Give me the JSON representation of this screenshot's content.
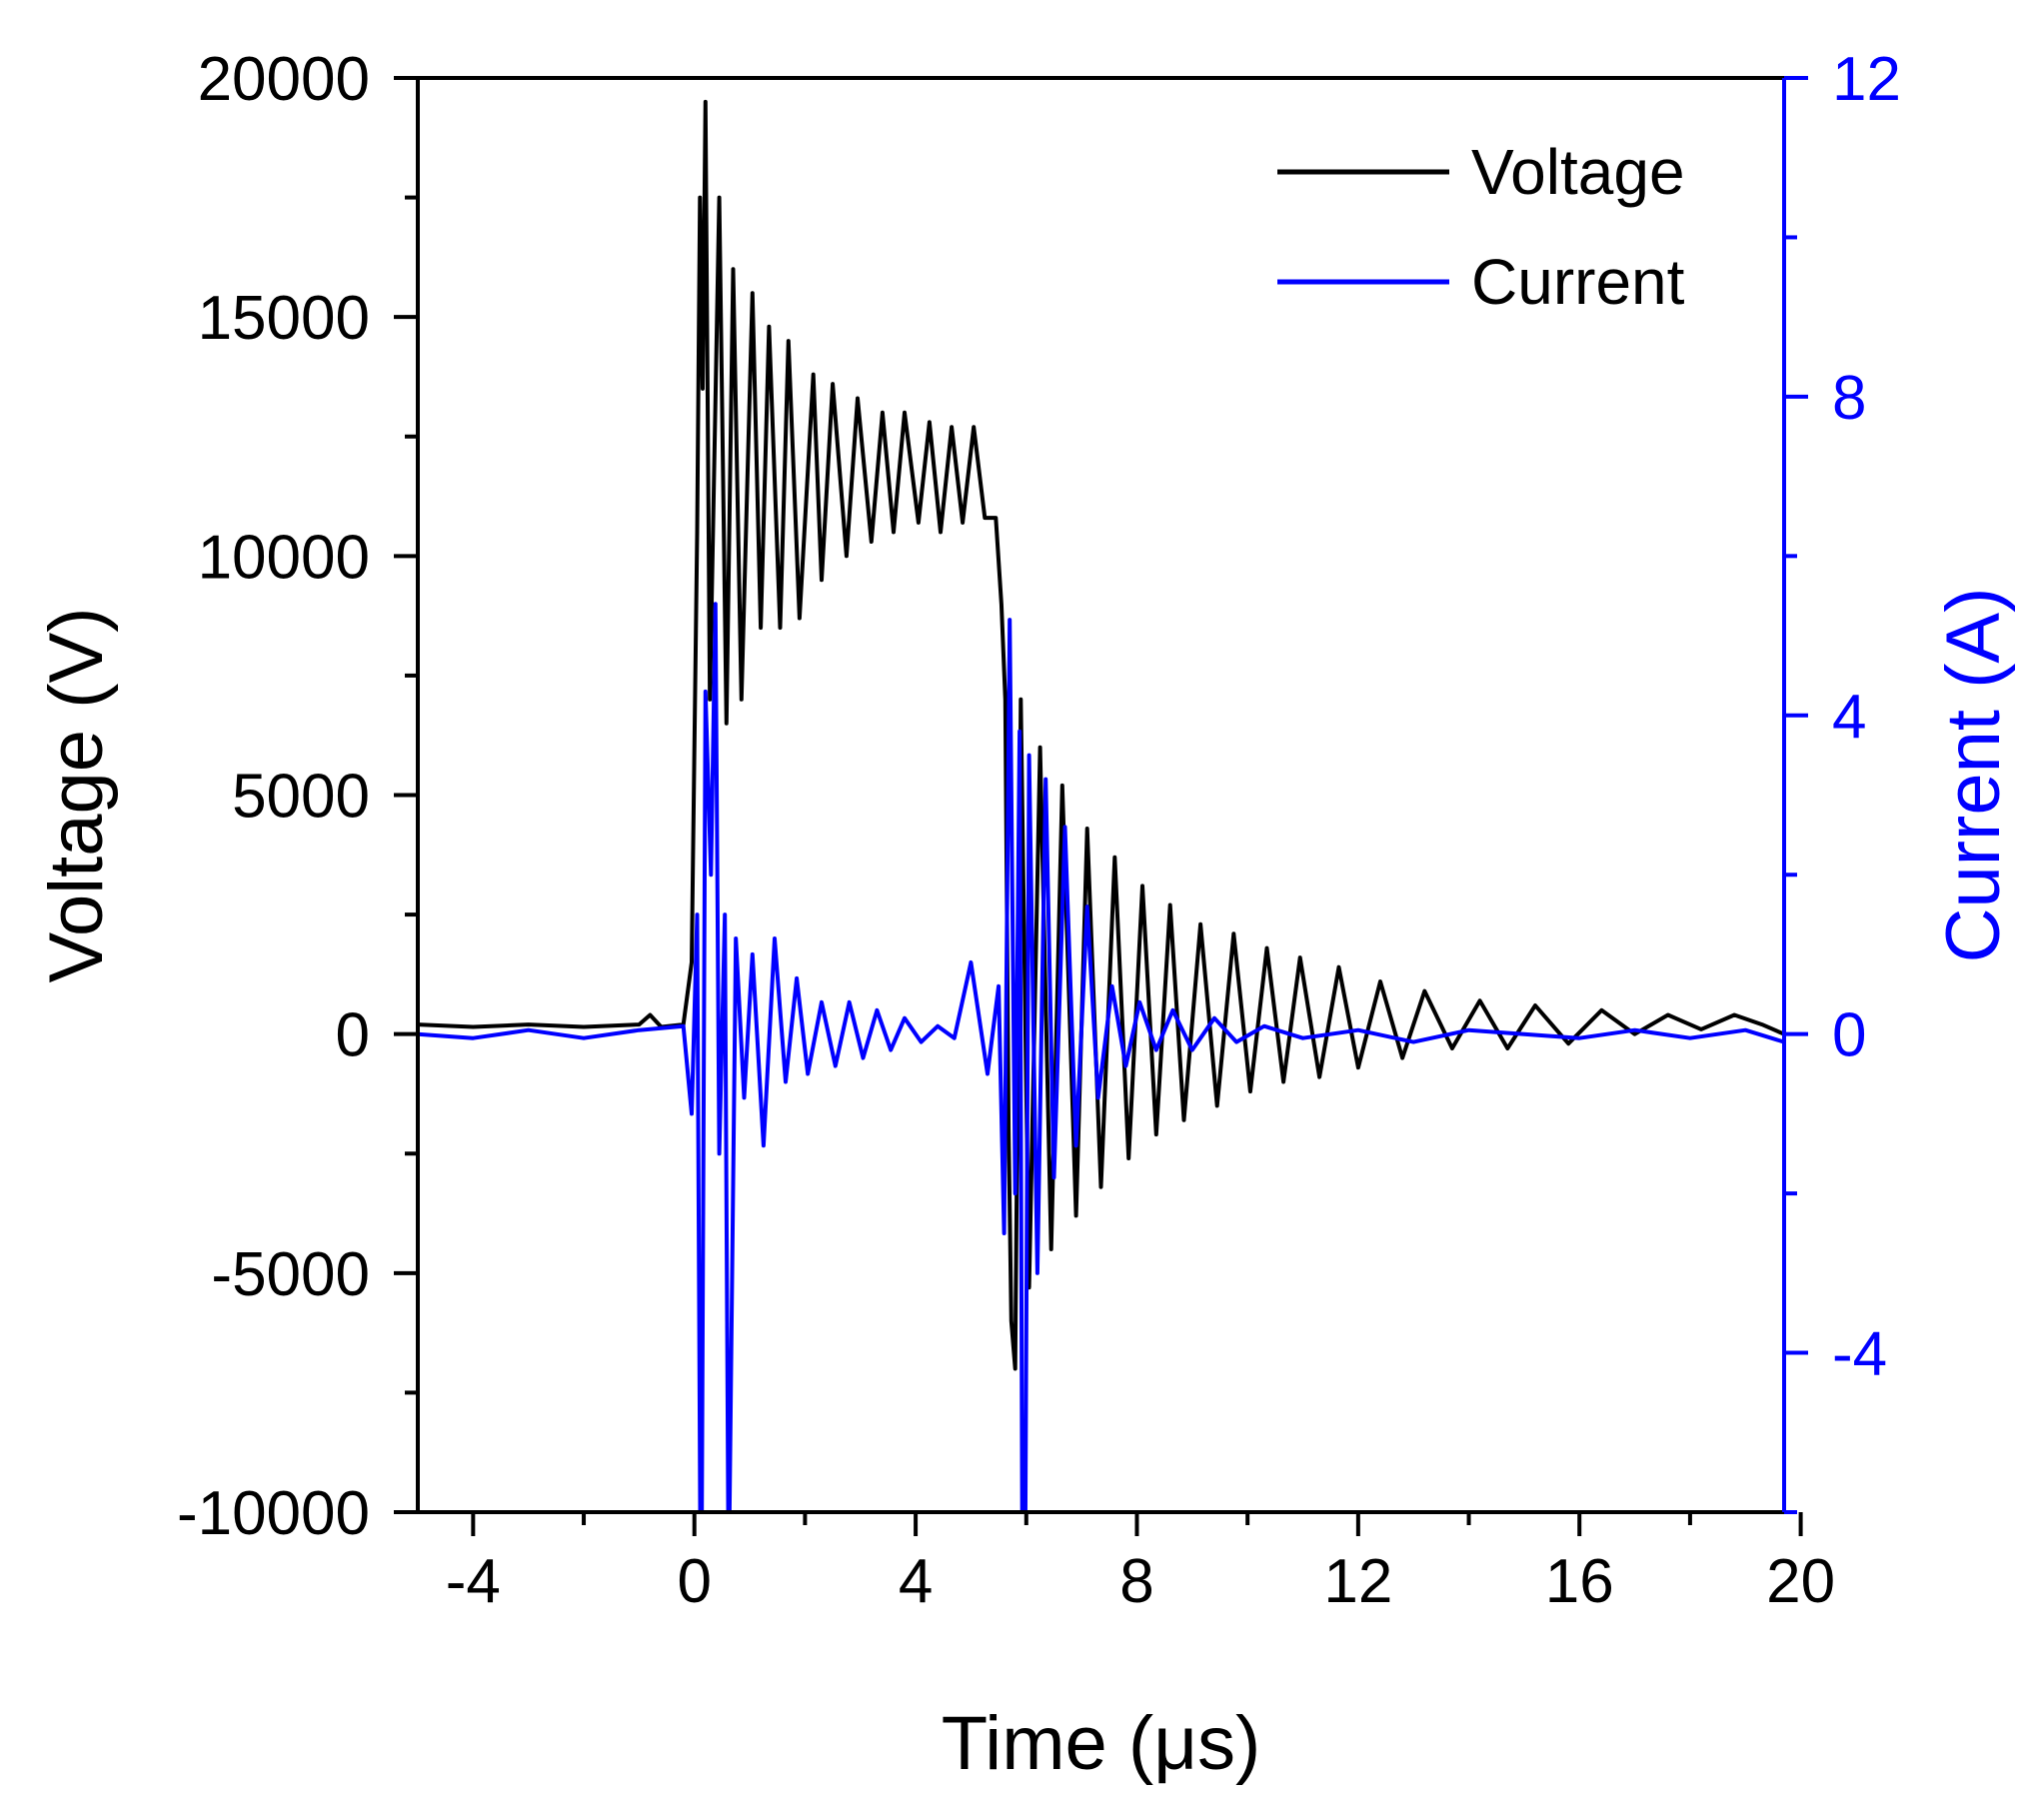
{
  "chart_data": {
    "type": "line",
    "xlabel": "Time (μs)",
    "ylabel_left": "Voltage (V)",
    "ylabel_right": "Current (A)",
    "xlim": [
      -5,
      19.7
    ],
    "ylim_left": [
      -10000,
      20000
    ],
    "ylim_right": [
      -6,
      12
    ],
    "xticks": [
      -4,
      0,
      4,
      8,
      12,
      16,
      20
    ],
    "xtick_labels": [
      "-4",
      "0",
      "4",
      "8",
      "12",
      "16",
      "20"
    ],
    "yticks_left": [
      -10000,
      -5000,
      0,
      5000,
      10000,
      15000,
      20000
    ],
    "ytick_labels_left": [
      "-10000",
      "-5000",
      "0",
      "5000",
      "10000",
      "15000",
      "20000"
    ],
    "yticks_right": [
      -4,
      0,
      4,
      8,
      12
    ],
    "ytick_labels_right": [
      "-4",
      "0",
      "4",
      "8",
      "12"
    ],
    "grid": false,
    "legend_position": "top-right",
    "series": [
      {
        "name": "Voltage",
        "axis": "left",
        "color": "#000000",
        "x": [
          -5.0,
          -4.0,
          -3.0,
          -2.0,
          -1.0,
          -0.8,
          -0.6,
          -0.2,
          -0.05,
          0.05,
          0.1,
          0.15,
          0.2,
          0.28,
          0.45,
          0.58,
          0.7,
          0.85,
          1.05,
          1.2,
          1.35,
          1.55,
          1.7,
          1.9,
          2.15,
          2.3,
          2.5,
          2.75,
          2.95,
          3.2,
          3.4,
          3.6,
          3.8,
          4.05,
          4.25,
          4.45,
          4.65,
          4.85,
          5.05,
          5.25,
          5.45,
          5.55,
          5.62,
          5.68,
          5.73,
          5.8,
          5.9,
          6.05,
          6.25,
          6.45,
          6.65,
          6.9,
          7.1,
          7.35,
          7.6,
          7.85,
          8.1,
          8.35,
          8.6,
          8.85,
          9.15,
          9.45,
          9.75,
          10.05,
          10.35,
          10.65,
          10.95,
          11.3,
          11.65,
          12.0,
          12.4,
          12.8,
          13.2,
          13.7,
          14.2,
          14.7,
          15.2,
          15.8,
          16.4,
          17.0,
          17.6,
          18.2,
          18.8,
          19.3,
          19.7
        ],
        "y": [
          200,
          150,
          200,
          150,
          200,
          400,
          150,
          200,
          1500,
          10500,
          17500,
          13500,
          19500,
          7000,
          17500,
          6500,
          16000,
          7000,
          15500,
          8500,
          14800,
          8500,
          14500,
          8700,
          13800,
          9500,
          13600,
          10000,
          13300,
          10300,
          13000,
          10500,
          13000,
          10700,
          12800,
          10500,
          12700,
          10700,
          12700,
          10800,
          10800,
          9000,
          7000,
          -2000,
          -6000,
          -7000,
          7000,
          -5300,
          6000,
          -4500,
          5200,
          -3800,
          4300,
          -3200,
          3700,
          -2600,
          3100,
          -2100,
          2700,
          -1800,
          2300,
          -1500,
          2100,
          -1200,
          1800,
          -1000,
          1600,
          -900,
          1400,
          -700,
          1100,
          -500,
          900,
          -300,
          700,
          -300,
          600,
          -200,
          500,
          0,
          400,
          100,
          400,
          200,
          0
        ]
      },
      {
        "name": "Current",
        "axis": "right",
        "color": "#0000ff",
        "x": [
          -5.0,
          -4.0,
          -3.0,
          -2.0,
          -1.0,
          -0.2,
          -0.05,
          0.05,
          0.12,
          0.2,
          0.3,
          0.38,
          0.45,
          0.55,
          0.62,
          0.75,
          0.9,
          1.05,
          1.25,
          1.45,
          1.65,
          1.85,
          2.05,
          2.3,
          2.55,
          2.8,
          3.05,
          3.3,
          3.55,
          3.8,
          4.1,
          4.4,
          4.7,
          5.0,
          5.3,
          5.5,
          5.6,
          5.7,
          5.8,
          5.88,
          5.95,
          6.05,
          6.2,
          6.35,
          6.5,
          6.7,
          6.9,
          7.1,
          7.3,
          7.55,
          7.8,
          8.05,
          8.35,
          8.65,
          9.0,
          9.4,
          9.8,
          10.3,
          11.0,
          12.0,
          13.0,
          14.0,
          15.0,
          16.0,
          17.0,
          18.0,
          19.0,
          19.7
        ],
        "y": [
          0.0,
          -0.05,
          0.05,
          -0.05,
          0.05,
          0.1,
          -1.0,
          1.5,
          -8.2,
          4.3,
          2.0,
          5.4,
          -1.5,
          1.5,
          -7.0,
          1.2,
          -0.8,
          1.0,
          -1.4,
          1.2,
          -0.6,
          0.7,
          -0.5,
          0.4,
          -0.4,
          0.4,
          -0.3,
          0.3,
          -0.2,
          0.2,
          -0.1,
          0.1,
          -0.05,
          0.9,
          -0.5,
          0.6,
          -2.5,
          5.2,
          -2.0,
          3.8,
          -11.0,
          3.5,
          -3.0,
          3.2,
          -1.8,
          2.6,
          -1.4,
          1.6,
          -0.8,
          0.6,
          -0.4,
          0.4,
          -0.2,
          0.3,
          -0.2,
          0.2,
          -0.1,
          0.1,
          -0.05,
          0.05,
          -0.1,
          0.05,
          0.0,
          -0.05,
          0.05,
          -0.05,
          0.05,
          -0.1
        ]
      }
    ]
  }
}
